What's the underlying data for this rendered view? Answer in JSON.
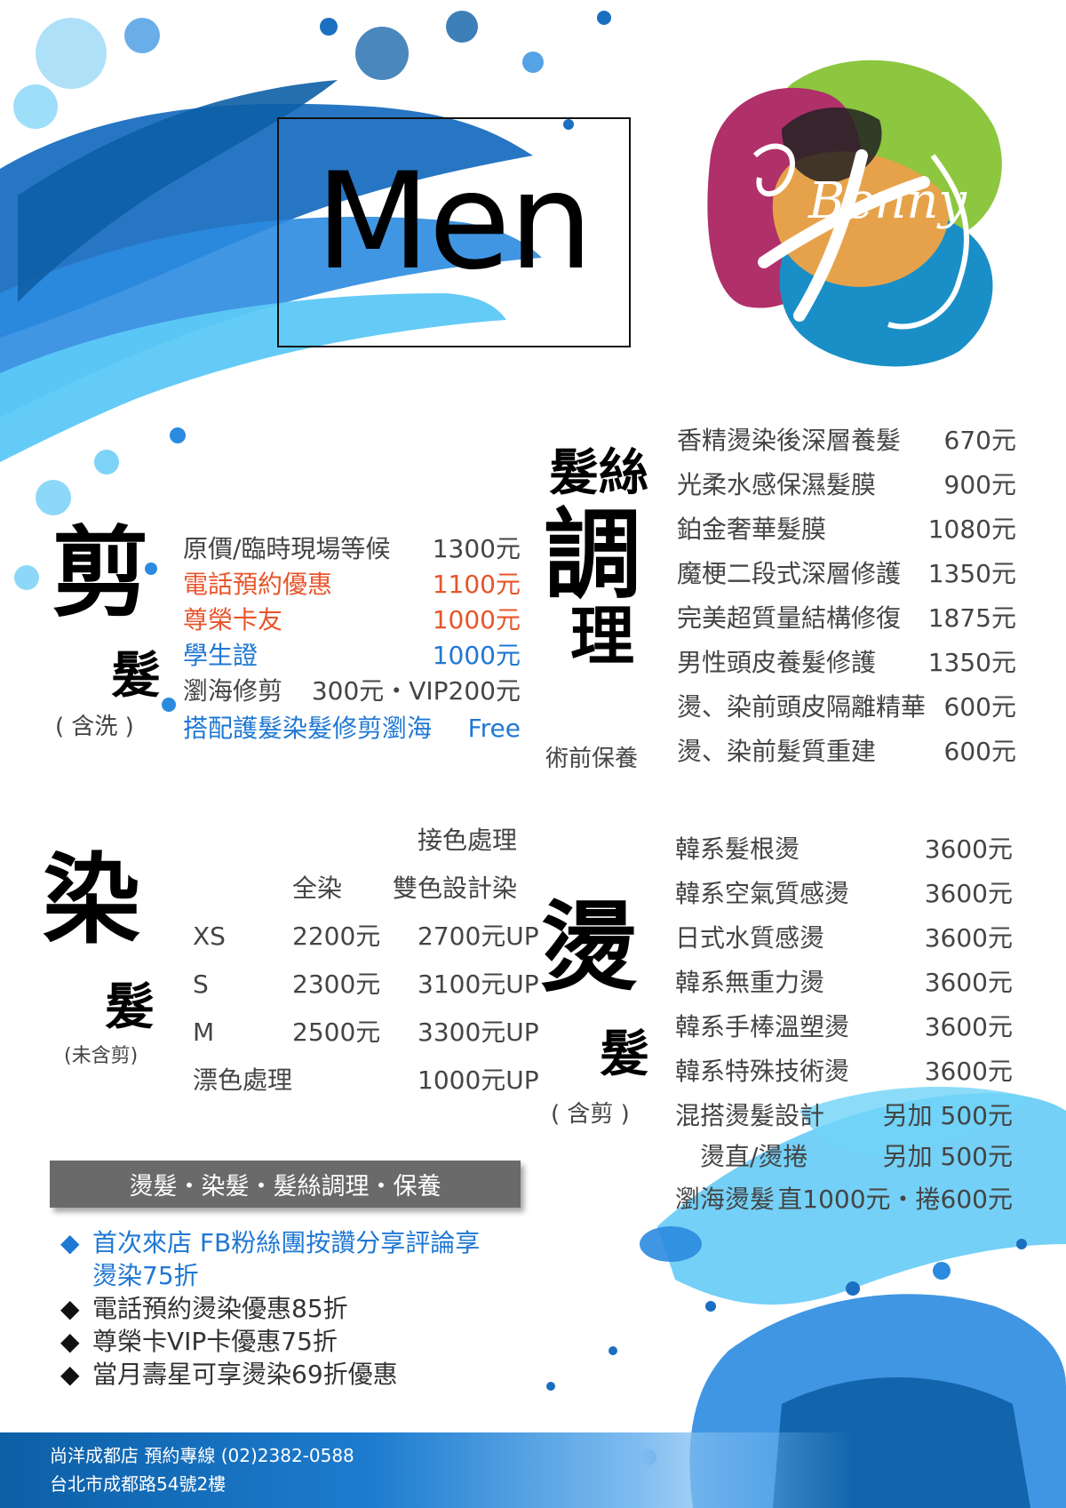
{
  "title": "Men",
  "logo_text": "Benny",
  "cut": {
    "heading": "剪",
    "heading2": "髮",
    "note": "( 含洗 )",
    "rows": [
      {
        "label": "原價/臨時現場等候",
        "price": "1300元",
        "color": "#444444"
      },
      {
        "label": "電話預約優惠",
        "price": "1100元",
        "color": "#e8552b"
      },
      {
        "label": "尊榮卡友",
        "price": "1000元",
        "color": "#e8552b"
      },
      {
        "label": "學生證",
        "price": "1000元",
        "color": "#1f78d4"
      },
      {
        "label": "瀏海修剪",
        "price": "300元・VIP200元",
        "color": "#444444"
      },
      {
        "label": "搭配護髮染髮修剪瀏海",
        "price": "Free",
        "color": "#1f78d4"
      }
    ]
  },
  "care": {
    "heading_top": "髮絲",
    "heading_main": "調",
    "heading_main2": "理",
    "note": "術前保養",
    "rows": [
      {
        "label": "香精燙染後深層養髮",
        "price": "670元"
      },
      {
        "label": "光柔水感保濕髮膜",
        "price": "900元"
      },
      {
        "label": "鉑金奢華髮膜",
        "price": "1080元"
      },
      {
        "label": "魔梗二段式深層修護",
        "price": "1350元"
      },
      {
        "label": "完美超質量結構修復",
        "price": "1875元"
      },
      {
        "label": "男性頭皮養髮修護",
        "price": "1350元"
      },
      {
        "label": "燙、染前頭皮隔離精華",
        "price": "600元"
      },
      {
        "label": "燙、染前髮質重建",
        "price": "600元"
      }
    ]
  },
  "dye": {
    "heading": "染",
    "heading2": "髮",
    "note": "(未含剪)",
    "col_group": "接色處理",
    "col_full": "全染",
    "col_two": "雙色設計染",
    "rows": [
      {
        "size": "XS",
        "full": "2200元",
        "two": "2700元UP"
      },
      {
        "size": "S",
        "full": "2300元",
        "two": "3100元UP"
      },
      {
        "size": "M",
        "full": "2500元",
        "two": "3300元UP"
      }
    ],
    "bleach_label": "漂色處理",
    "bleach_price": "1000元UP"
  },
  "perm": {
    "heading": "燙",
    "heading2": "髮",
    "note": "( 含剪 )",
    "rows": [
      {
        "label": "韓系髮根燙",
        "price": "3600元"
      },
      {
        "label": "韓系空氣質感燙",
        "price": "3600元"
      },
      {
        "label": "日式水質感燙",
        "price": "3600元"
      },
      {
        "label": "韓系無重力燙",
        "price": "3600元"
      },
      {
        "label": "韓系手棒溫塑燙",
        "price": "3600元"
      },
      {
        "label": "韓系特殊技術燙",
        "price": "3600元"
      },
      {
        "label": "混搭燙髮設計",
        "price": "另加  500元"
      },
      {
        "label": "　燙直/燙捲",
        "price": "另加  500元"
      },
      {
        "label": "瀏海燙髮",
        "price": "直1000元・捲600元"
      }
    ]
  },
  "banner": "燙髮・染髮・髮絲調理・保養",
  "promotions": [
    {
      "bullet": "◆",
      "text": "首次來店  FB粉絲團按讚分享評論享",
      "color": "#1f78d4",
      "bullet_color": "#1f78d4"
    },
    {
      "bullet": "",
      "text": "燙染75折",
      "color": "#1f78d4",
      "bullet_color": "#1f78d4"
    },
    {
      "bullet": "◆",
      "text": "電話預約燙染優惠85折",
      "color": "#333333",
      "bullet_color": "#111111"
    },
    {
      "bullet": "◆",
      "text": "尊榮卡VIP卡優惠75折",
      "color": "#333333",
      "bullet_color": "#111111"
    },
    {
      "bullet": "◆",
      "text": "當月壽星可享燙染69折優惠",
      "color": "#333333",
      "bullet_color": "#111111"
    }
  ],
  "footer": {
    "line1": "尚洋成都店 預約專線 (02)2382-0588",
    "line2": "台北市成都路54號2樓"
  },
  "colors": {
    "splash_dark": "#0d5fa6",
    "splash_mid": "#2b8be0",
    "splash_light": "#5cc8f5",
    "accent_red": "#e8552b",
    "accent_blue": "#1f78d4"
  }
}
